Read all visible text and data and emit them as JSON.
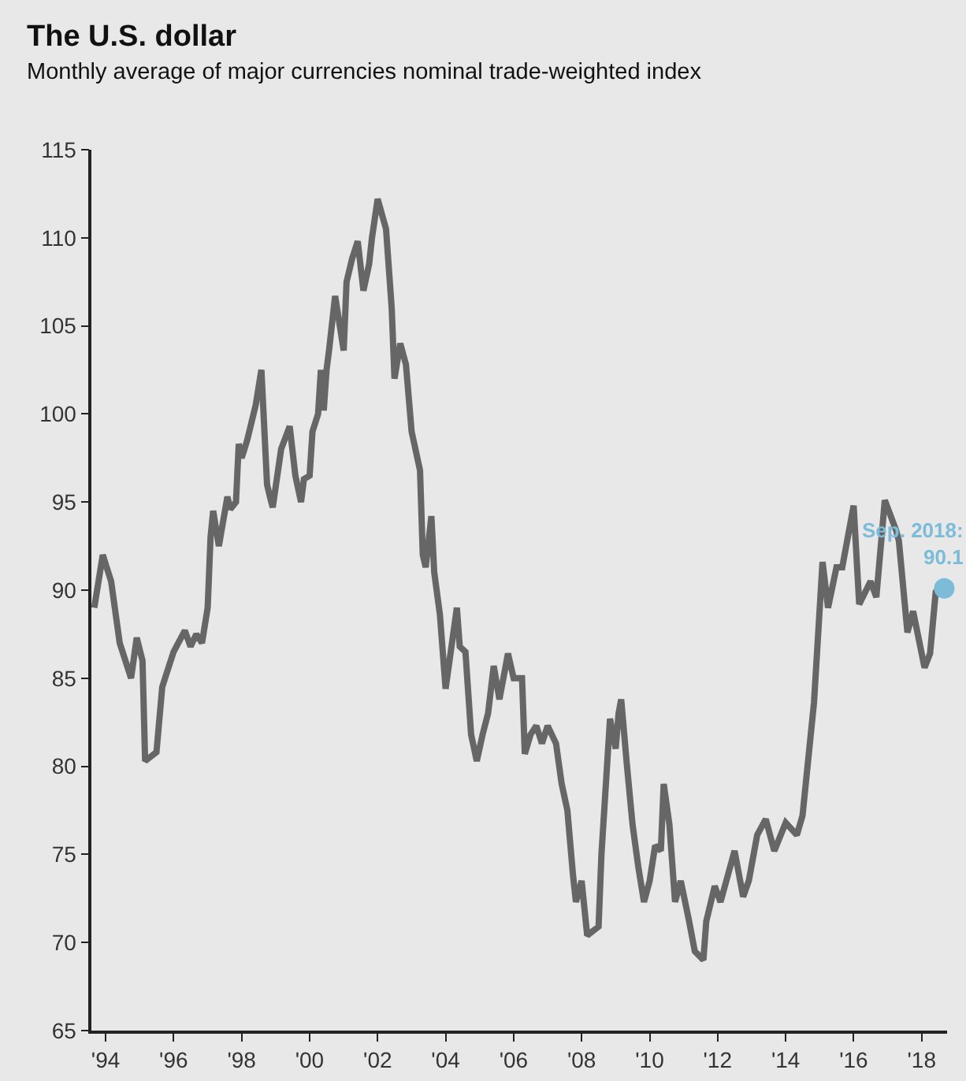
{
  "chart_data": {
    "type": "line",
    "title": "The U.S. dollar",
    "subtitle": "Monthly average of major currencies nominal trade-weighted index",
    "series": [
      {
        "color": "#666666",
        "x": [
          "1993-09",
          "1993-12",
          "1994-03",
          "1994-06",
          "1994-10",
          "1994-12",
          "1995-02",
          "1995-03",
          "1995-07",
          "1995-09",
          "1995-10",
          "1996-01",
          "1996-05",
          "1996-07",
          "1996-09",
          "1996-11",
          "1997-01",
          "1997-02",
          "1997-03",
          "1997-05",
          "1997-08",
          "1997-09",
          "1997-11",
          "1997-12",
          "1998-01",
          "1998-03",
          "1998-06",
          "1998-08",
          "1998-10",
          "1998-11",
          "1998-12",
          "1999-03",
          "1999-06",
          "1999-08",
          "1999-10",
          "1999-11",
          "2000-01",
          "2000-02",
          "2000-04",
          "2000-05",
          "2000-06",
          "2000-07",
          "2000-08",
          "2000-10",
          "2001-01",
          "2001-02",
          "2001-04",
          "2001-06",
          "2001-08",
          "2001-10",
          "2001-11",
          "2002-01",
          "2002-04",
          "2002-06",
          "2002-07",
          "2002-09",
          "2002-11",
          "2003-01",
          "2003-04",
          "2003-05",
          "2003-06",
          "2003-08",
          "2003-09",
          "2003-11",
          "2004-01",
          "2004-05",
          "2004-06",
          "2004-08",
          "2004-10",
          "2004-12",
          "2005-02",
          "2005-04",
          "2005-06",
          "2005-08",
          "2005-11",
          "2006-01",
          "2006-04",
          "2006-05",
          "2006-07",
          "2006-09",
          "2006-11",
          "2007-01",
          "2007-04",
          "2007-06",
          "2007-08",
          "2007-10",
          "2007-11",
          "2008-01",
          "2008-03",
          "2008-07",
          "2008-08",
          "2008-11",
          "2009-01",
          "2009-02",
          "2009-03",
          "2009-05",
          "2009-07",
          "2009-09",
          "2009-11",
          "2010-01",
          "2010-03",
          "2010-05",
          "2010-06",
          "2010-08",
          "2010-10",
          "2010-12",
          "2011-03",
          "2011-05",
          "2011-08",
          "2011-09",
          "2011-12",
          "2012-02",
          "2012-07",
          "2012-10",
          "2012-12",
          "2013-03",
          "2013-06",
          "2013-09",
          "2014-01",
          "2014-05",
          "2014-07",
          "2014-11",
          "2015-02",
          "2015-04",
          "2015-07",
          "2015-09",
          "2016-01",
          "2016-03",
          "2016-07",
          "2016-09",
          "2016-12",
          "2017-04",
          "2017-05",
          "2017-08",
          "2017-10",
          "2018-02",
          "2018-04",
          "2018-06",
          "2018-08",
          "2018-09"
        ],
        "values": [
          89,
          92,
          90.5,
          87,
          85,
          87.3,
          86,
          80.3,
          80.8,
          84.5,
          85,
          86.5,
          87.7,
          86.8,
          87.5,
          87,
          89,
          93,
          94.5,
          92.5,
          95.3,
          94.6,
          95,
          98.3,
          97.5,
          98.5,
          100.5,
          102.5,
          96,
          95.3,
          94.7,
          98,
          99.3,
          96.5,
          95,
          96.3,
          96.5,
          99,
          100,
          102.5,
          100.2,
          102.5,
          103.8,
          106.7,
          103.6,
          107.5,
          108.8,
          109.8,
          107,
          108.5,
          110,
          112.2,
          110.5,
          106,
          102,
          104,
          102.8,
          99,
          96.8,
          92,
          91.3,
          94.2,
          91,
          88.6,
          84.4,
          89,
          86.8,
          86.5,
          81.8,
          80.3,
          81.8,
          83,
          85.7,
          83.8,
          86.4,
          85,
          85,
          80.7,
          81.8,
          82.3,
          81.3,
          82.3,
          81.3,
          79,
          77.5,
          73.8,
          72.3,
          73.5,
          70.4,
          70.9,
          75,
          82.7,
          81,
          83,
          83.8,
          80.1,
          76.7,
          74.3,
          72.3,
          73.5,
          75.5,
          75.2,
          79,
          76.7,
          72.3,
          73.5,
          71.2,
          69.5,
          69,
          71.2,
          73.2,
          72.3,
          75.2,
          72.6,
          73.5,
          76.1,
          77,
          75.2,
          76.8,
          76.1,
          77.2,
          83.6,
          91.6,
          89,
          91.3,
          91.3,
          94.8,
          89.2,
          90.5,
          89.6,
          95.1,
          93.4,
          92.8,
          87.6,
          88.8,
          85.6,
          86.4,
          89.9,
          90.3,
          90.1
        ]
      },
      {
        "type": "scatter",
        "marker": "circle",
        "color": "#7dbcd9",
        "x": [
          "2018-09"
        ],
        "values": [
          90.1
        ]
      }
    ],
    "annotations": [
      {
        "text": "Sep. 2018:\n90.1",
        "x": "2018-09",
        "y": 90.1
      }
    ],
    "xlim": [
      "1993-08",
      "2018-10"
    ],
    "xticks": [
      {
        "value": "1994",
        "label": "'94"
      },
      {
        "value": "1996",
        "label": "'96"
      },
      {
        "value": "1998",
        "label": "'98"
      },
      {
        "value": "2000",
        "label": "'00"
      },
      {
        "value": "2002",
        "label": "'02"
      },
      {
        "value": "2004",
        "label": "'04"
      },
      {
        "value": "2006",
        "label": "'06"
      },
      {
        "value": "2008",
        "label": "'08"
      },
      {
        "value": "2010",
        "label": "'10"
      },
      {
        "value": "2012",
        "label": "'12"
      },
      {
        "value": "2014",
        "label": "'14"
      },
      {
        "value": "2016",
        "label": "'16"
      },
      {
        "value": "2018",
        "label": "'18"
      }
    ],
    "ylim": [
      65,
      115
    ],
    "yticks": [
      65,
      70,
      75,
      80,
      85,
      90,
      95,
      100,
      105,
      110,
      115
    ],
    "grid": false,
    "line_style": "solid"
  }
}
